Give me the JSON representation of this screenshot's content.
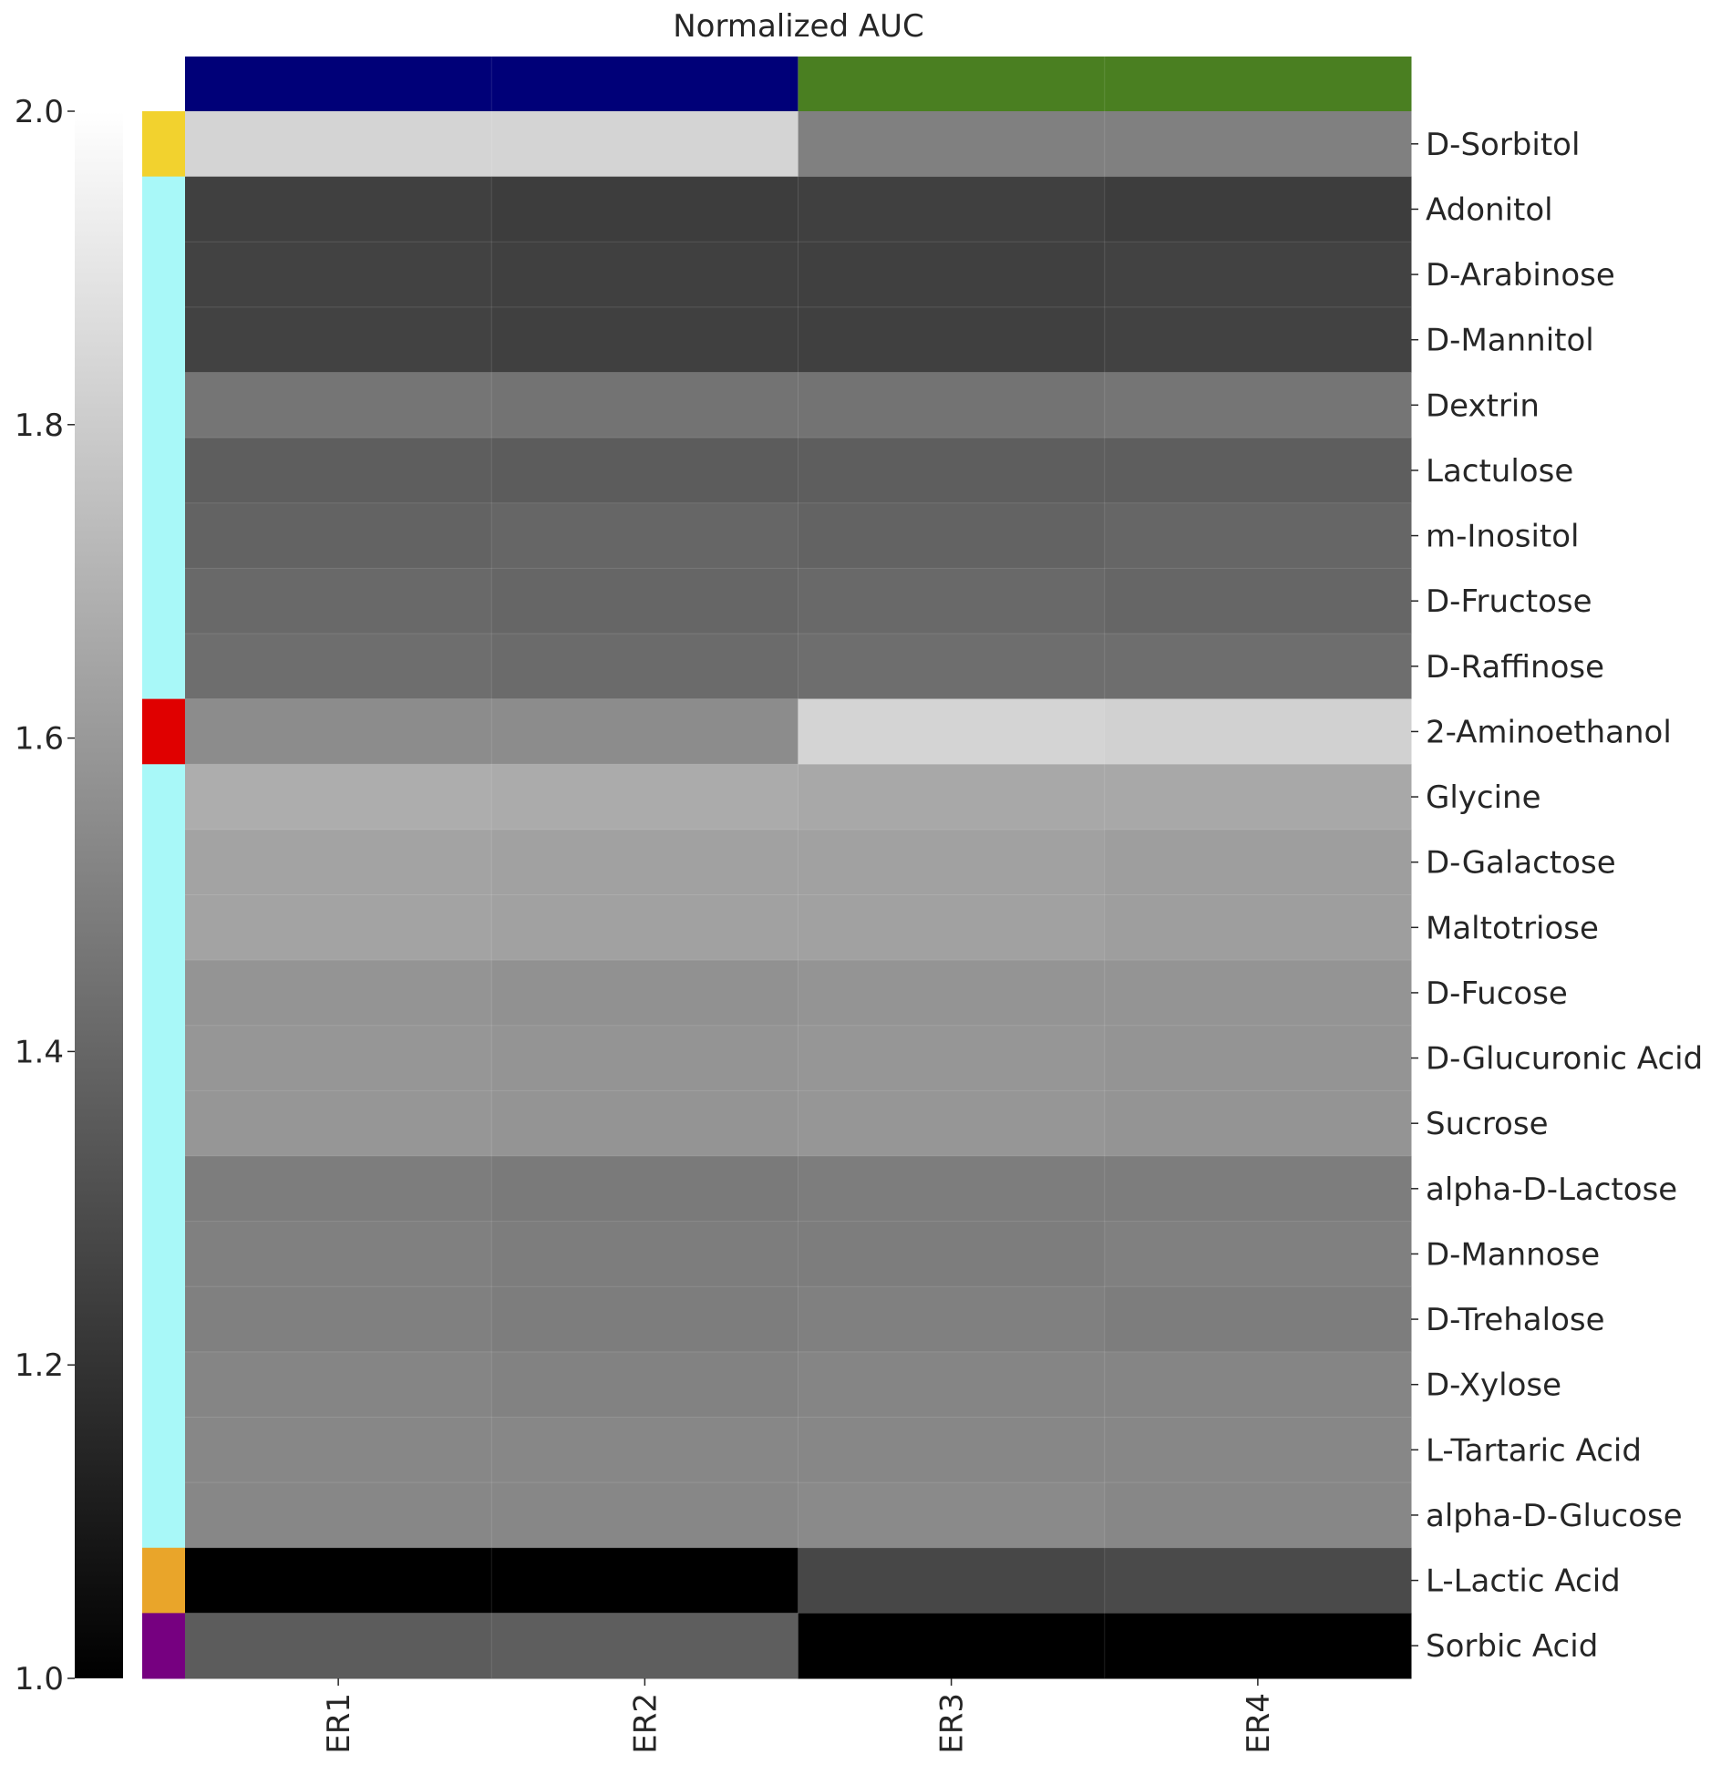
{
  "chart_data": {
    "type": "heatmap",
    "title": "Normalized AUC",
    "columns": [
      "ER1",
      "ER2",
      "ER3",
      "ER4"
    ],
    "column_group_colors": [
      "#000078",
      "#000078",
      "#4a7f21",
      "#4a7f21"
    ],
    "rows": [
      {
        "label": "D-Sorbitol",
        "group_color": "#f2d22e",
        "values": [
          1.83,
          1.83,
          1.5,
          1.5
        ]
      },
      {
        "label": "Adonitol",
        "group_color": "#a8f8f8",
        "values": [
          1.25,
          1.24,
          1.25,
          1.24
        ]
      },
      {
        "label": "D-Arabinose",
        "group_color": "#a8f8f8",
        "values": [
          1.26,
          1.25,
          1.25,
          1.26
        ]
      },
      {
        "label": "D-Mannitol",
        "group_color": "#a8f8f8",
        "values": [
          1.26,
          1.25,
          1.25,
          1.26
        ]
      },
      {
        "label": "Dextrin",
        "group_color": "#a8f8f8",
        "values": [
          1.46,
          1.45,
          1.45,
          1.46
        ]
      },
      {
        "label": "Lactulose",
        "group_color": "#a8f8f8",
        "values": [
          1.37,
          1.36,
          1.37,
          1.37
        ]
      },
      {
        "label": "m-Inositol",
        "group_color": "#a8f8f8",
        "values": [
          1.39,
          1.4,
          1.39,
          1.4
        ]
      },
      {
        "label": "D-Fructose",
        "group_color": "#a8f8f8",
        "values": [
          1.41,
          1.4,
          1.41,
          1.4
        ]
      },
      {
        "label": "D-Raffinose",
        "group_color": "#a8f8f8",
        "values": [
          1.43,
          1.42,
          1.43,
          1.43
        ]
      },
      {
        "label": "2-Aminoethanol",
        "group_color": "#e00000",
        "values": [
          1.55,
          1.55,
          1.83,
          1.82
        ]
      },
      {
        "label": "Glycine",
        "group_color": "#a8f8f8",
        "values": [
          1.68,
          1.67,
          1.66,
          1.66
        ]
      },
      {
        "label": "D-Galactose",
        "group_color": "#a8f8f8",
        "values": [
          1.64,
          1.63,
          1.63,
          1.62
        ]
      },
      {
        "label": "Maltotriose",
        "group_color": "#a8f8f8",
        "values": [
          1.64,
          1.63,
          1.63,
          1.62
        ]
      },
      {
        "label": "D-Fucose",
        "group_color": "#a8f8f8",
        "values": [
          1.58,
          1.57,
          1.58,
          1.58
        ]
      },
      {
        "label": "D-Glucuronic Acid",
        "group_color": "#a8f8f8",
        "values": [
          1.59,
          1.58,
          1.59,
          1.58
        ]
      },
      {
        "label": "Sucrose",
        "group_color": "#a8f8f8",
        "values": [
          1.59,
          1.58,
          1.59,
          1.58
        ]
      },
      {
        "label": "alpha-D-Lactose",
        "group_color": "#a8f8f8",
        "values": [
          1.49,
          1.48,
          1.49,
          1.49
        ]
      },
      {
        "label": "D-Mannose",
        "group_color": "#a8f8f8",
        "values": [
          1.5,
          1.49,
          1.49,
          1.5
        ]
      },
      {
        "label": "D-Trehalose",
        "group_color": "#a8f8f8",
        "values": [
          1.5,
          1.49,
          1.5,
          1.49
        ]
      },
      {
        "label": "D-Xylose",
        "group_color": "#a8f8f8",
        "values": [
          1.52,
          1.51,
          1.52,
          1.52
        ]
      },
      {
        "label": "L-Tartaric Acid",
        "group_color": "#a8f8f8",
        "values": [
          1.53,
          1.53,
          1.53,
          1.53
        ]
      },
      {
        "label": "alpha-D-Glucose",
        "group_color": "#a8f8f8",
        "values": [
          1.53,
          1.53,
          1.54,
          1.53
        ]
      },
      {
        "label": "L-Lactic Acid",
        "group_color": "#e9a52a",
        "values": [
          1.0,
          1.0,
          1.28,
          1.29
        ]
      },
      {
        "label": "Sorbic Acid",
        "group_color": "#760080",
        "values": [
          1.36,
          1.37,
          1.0,
          1.0
        ]
      }
    ],
    "colorbar": {
      "min": 1.0,
      "max": 2.0,
      "ticks": [
        1.0,
        1.2,
        1.4,
        1.6,
        1.8,
        2.0
      ],
      "tick_labels": [
        "1.0",
        "1.2",
        "1.4",
        "1.6",
        "1.8",
        "2.0"
      ],
      "colormap": "grayscale"
    }
  }
}
